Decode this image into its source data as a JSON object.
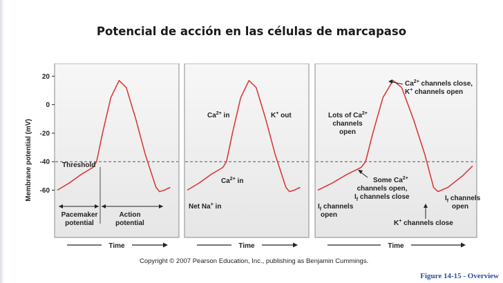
{
  "slide": {
    "title": "Potencial de acción en las células de marcapaso",
    "caption": "Figure 14-15 - Overview",
    "copyright": "Copyright © 2007 Pearson Education, Inc., publishing as Benjamin Cummings."
  },
  "chart_data": [
    {
      "type": "line",
      "panel": 1,
      "ylabel": "Membrane potential (mV)",
      "xlabel": "Time",
      "ylim": [
        -68,
        26
      ],
      "yticks": [
        20,
        0,
        -20,
        -40,
        -60
      ],
      "threshold_mv": -40,
      "series": [
        {
          "values_note": "",
          "points": [
            [
              0,
              -60
            ],
            [
              0.1,
              -55
            ],
            [
              0.2,
              -49
            ],
            [
              0.3,
              -44
            ],
            [
              0.33,
              -40
            ],
            [
              0.38,
              -20
            ],
            [
              0.45,
              5
            ],
            [
              0.52,
              17
            ],
            [
              0.58,
              12
            ],
            [
              0.66,
              -10
            ],
            [
              0.74,
              -35
            ],
            [
              0.83,
              -58
            ],
            [
              0.86,
              -61
            ],
            [
              0.9,
              -60
            ],
            [
              0.95,
              -58
            ]
          ]
        }
      ],
      "labels": {
        "threshold": "Threshold",
        "pacemaker": [
          "Pacemaker",
          "potential"
        ],
        "action": [
          "Action",
          "potential"
        ]
      }
    },
    {
      "type": "line",
      "panel": 2,
      "xlabel": "Time",
      "ylim": [
        -68,
        26
      ],
      "threshold_mv": -40,
      "series": [
        {
          "points": [
            [
              0,
              -60
            ],
            [
              0.1,
              -55
            ],
            [
              0.2,
              -49
            ],
            [
              0.3,
              -44
            ],
            [
              0.33,
              -40
            ],
            [
              0.38,
              -20
            ],
            [
              0.45,
              5
            ],
            [
              0.52,
              17
            ],
            [
              0.58,
              12
            ],
            [
              0.66,
              -10
            ],
            [
              0.74,
              -35
            ],
            [
              0.83,
              -58
            ],
            [
              0.86,
              -61
            ],
            [
              0.9,
              -60
            ],
            [
              0.95,
              -58
            ]
          ]
        }
      ],
      "labels": {
        "ca_in_top": [
          "Ca",
          "2+",
          " in"
        ],
        "k_out": [
          "K",
          "+",
          " out"
        ],
        "ca_in_mid": [
          "Ca",
          "2+",
          " in"
        ],
        "net_na_in": [
          "Net Na",
          "+",
          " in"
        ]
      }
    },
    {
      "type": "line",
      "panel": 3,
      "xlabel": "Time",
      "ylim": [
        -68,
        26
      ],
      "threshold_mv": -40,
      "series": [
        {
          "points": [
            [
              0,
              -60
            ],
            [
              0.1,
              -55
            ],
            [
              0.2,
              -49
            ],
            [
              0.3,
              -44
            ],
            [
              0.33,
              -40
            ],
            [
              0.38,
              -20
            ],
            [
              0.45,
              5
            ],
            [
              0.52,
              17
            ],
            [
              0.58,
              12
            ],
            [
              0.66,
              -10
            ],
            [
              0.74,
              -35
            ],
            [
              0.8,
              -58
            ],
            [
              0.83,
              -61
            ],
            [
              0.9,
              -58
            ],
            [
              1.0,
              -50
            ],
            [
              1.07,
              -43
            ]
          ]
        }
      ],
      "labels": {
        "ca_close": [
          "Ca",
          "2+",
          " channels close,"
        ],
        "k_open": [
          "K",
          "+",
          " channels open"
        ],
        "lots_ca": [
          "Lots of Ca",
          "2+"
        ],
        "lots_ca2": "channels",
        "lots_ca3": "open",
        "some_ca": [
          "Some Ca",
          "2+"
        ],
        "some_ca2": "channels open,",
        "some_ca3": [
          "I",
          "f",
          " channels close"
        ],
        "if_left": [
          "I",
          "f",
          " channels"
        ],
        "if_left2": "open",
        "if_right": [
          "I",
          "f",
          " channels"
        ],
        "if_right2": "open",
        "k_close": [
          "K",
          "+",
          " channels close"
        ]
      }
    }
  ],
  "colors": {
    "trace": "#d93a3a",
    "panel_bg": "#ffffff",
    "threshold": "#555555",
    "caption": "#2b4e9c"
  }
}
